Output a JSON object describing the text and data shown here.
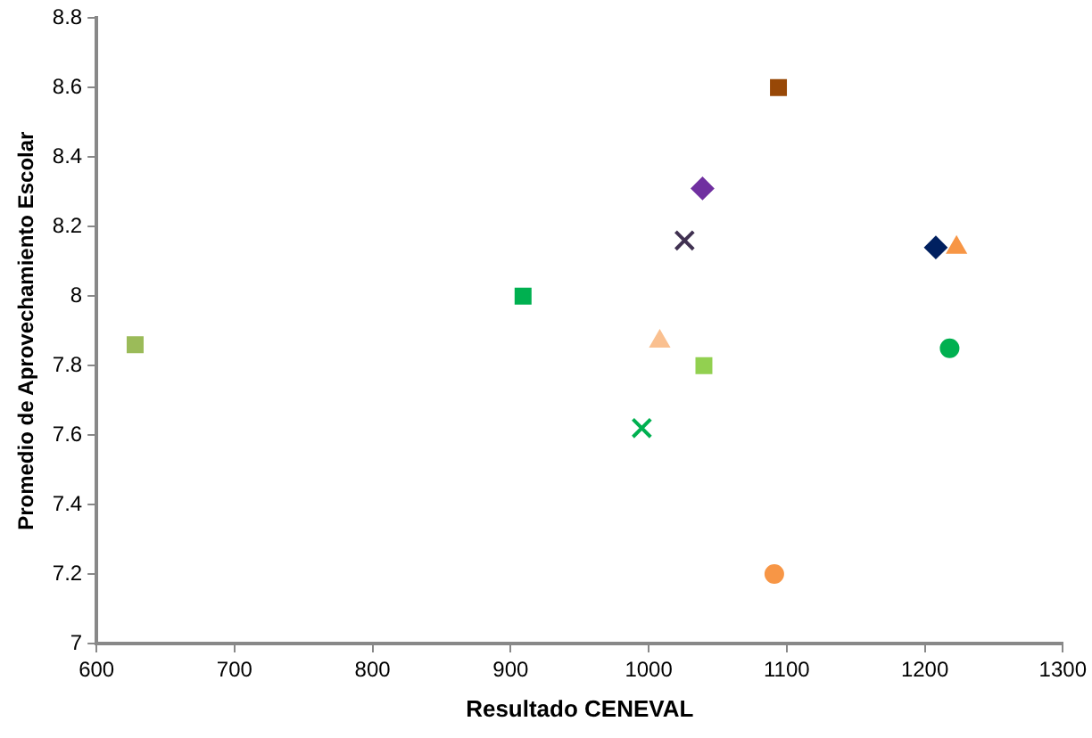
{
  "chart_data": {
    "type": "scatter",
    "xlabel": "Resultado CENEVAL",
    "ylabel": "Promedio de Aprovechamiento Escolar",
    "xlim": [
      600,
      1300
    ],
    "xticks": [
      600,
      700,
      800,
      900,
      1000,
      1100,
      1200,
      1300
    ],
    "ylim": [
      7,
      8.8
    ],
    "yticks": [
      7,
      7.2,
      7.4,
      7.6,
      7.8,
      8,
      8.2,
      8.4,
      8.6,
      8.8
    ],
    "grid": false,
    "legend": false,
    "series": [
      {
        "color": "#9bbb59",
        "marker": "square",
        "x": [
          628
        ],
        "values": [
          7.86
        ]
      },
      {
        "color": "#00b050",
        "marker": "square",
        "x": [
          909
        ],
        "values": [
          8.0
        ]
      },
      {
        "color": "#984807",
        "marker": "square",
        "x": [
          1094
        ],
        "values": [
          8.6
        ]
      },
      {
        "color": "#7030a0",
        "marker": "diamond",
        "x": [
          1039
        ],
        "values": [
          8.31
        ]
      },
      {
        "color": "#403151",
        "marker": "cross",
        "x": [
          1026
        ],
        "values": [
          8.16
        ]
      },
      {
        "color": "#002060",
        "marker": "diamond",
        "x": [
          1208
        ],
        "values": [
          8.14
        ]
      },
      {
        "color": "#f79646",
        "marker": "triangle",
        "x": [
          1223
        ],
        "values": [
          8.14
        ]
      },
      {
        "color": "#fac090",
        "marker": "triangle",
        "x": [
          1008
        ],
        "values": [
          7.87
        ]
      },
      {
        "color": "#92d050",
        "marker": "square",
        "x": [
          1040
        ],
        "values": [
          7.8
        ]
      },
      {
        "color": "#00b050",
        "marker": "circle",
        "x": [
          1218
        ],
        "values": [
          7.85
        ]
      },
      {
        "color": "#00b050",
        "marker": "cross",
        "x": [
          995
        ],
        "values": [
          7.62
        ]
      },
      {
        "color": "#f79646",
        "marker": "circle",
        "x": [
          1091
        ],
        "values": [
          7.2
        ]
      }
    ]
  }
}
